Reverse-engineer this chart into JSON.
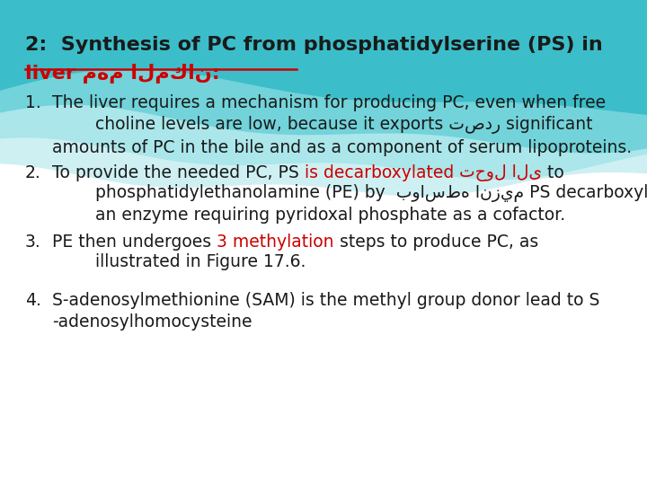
{
  "bg_color": "#ffffff",
  "title_line1": "2:  Synthesis of PC from phosphatidylserine (PS) in",
  "title_line2": "liver مهم المكان:",
  "title_fs": 16,
  "body_fs": 13.5,
  "red": "#cc0000",
  "black": "#1a1a1a",
  "wave_teal_dark": "#3bbec9",
  "wave_teal_mid": "#72d3da",
  "wave_teal_light": "#aae6ea",
  "wave_teal_pale": "#cef0f3",
  "item1_text": "The liver requires a mechanism for producing PC, even when free\n        choline levels are low, because it exports تصدر significant\namounts of PC in the bile and as a component of serum lipoproteins.",
  "item2_line1_black1": "To provide the needed PC, PS ",
  "item2_line1_red1": "is decarboxylated",
  "item2_line1_red2": " تحول الى",
  "item2_line1_black2": " to",
  "item2_rest": "        phosphatidylethanolamine (PE) by  بواسطه انزيم PS decarboxylase,\n        an enzyme requiring pyridoxal phosphate as a cofactor.",
  "item3_line1_black1": "PE then undergoes ",
  "item3_line1_red": "3 methylation",
  "item3_line1_black2": " steps to produce PC, as",
  "item3_rest": "        illustrated in Figure 17.6.",
  "item4_text": "S-adenosylmethionine (SAM) is the methyl group donor lead to S\n-adenosylhomocysteine"
}
